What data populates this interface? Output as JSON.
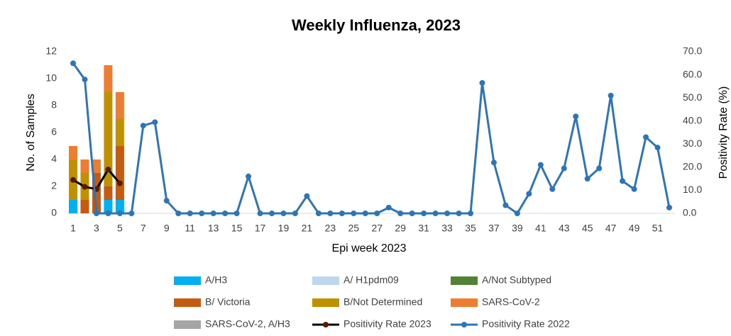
{
  "chart_data": {
    "type": "bar",
    "title": "Weekly Influenza, 2023",
    "x_label": "Epi week 2023",
    "y_label": "No. of Samples",
    "y2_label": "Positivity Rate (%)",
    "stacked": true,
    "categories": [
      "1",
      null,
      "3",
      null,
      "5",
      null,
      "7",
      null,
      "9",
      null,
      "11",
      null,
      "13",
      null,
      "15",
      null,
      "17",
      null,
      "19",
      null,
      "21",
      null,
      "23",
      null,
      "25",
      null,
      "27",
      null,
      "29",
      null,
      "31",
      null,
      "33",
      null,
      "35",
      null,
      "37",
      null,
      "39",
      null,
      "41",
      null,
      "43",
      null,
      "45",
      null,
      "47",
      null,
      "49",
      null,
      "51",
      null
    ],
    "ylim": [
      0,
      12
    ],
    "yticks": [
      0,
      2,
      4,
      6,
      8,
      10,
      12
    ],
    "y2lim": [
      0,
      70
    ],
    "y2ticks": [
      {
        "value": 0,
        "label": "0.0"
      },
      {
        "value": 10,
        "label": "10.0"
      },
      {
        "value": 20,
        "label": "20.0"
      },
      {
        "value": 30,
        "label": "30.0"
      },
      {
        "value": 40,
        "label": "40.0"
      },
      {
        "value": 50,
        "label": "50.0"
      },
      {
        "value": 60,
        "label": "60.0"
      },
      {
        "value": 70,
        "label": "70.0"
      }
    ],
    "series": [
      {
        "name": "A/H3",
        "type": "bar",
        "color": "#00b0f0",
        "values": [
          1,
          0,
          0,
          1,
          1,
          null,
          null,
          null,
          null,
          null,
          null,
          null,
          null,
          null,
          null,
          null,
          null,
          null,
          null,
          null,
          null,
          null,
          null,
          null,
          null,
          null,
          null,
          null,
          null,
          null,
          null,
          null,
          null,
          null,
          null,
          null,
          null,
          null,
          null,
          null,
          null,
          null,
          null,
          null,
          null,
          null,
          null,
          null,
          null,
          null,
          null,
          null
        ]
      },
      {
        "name": "A/ H1pdm09",
        "type": "bar",
        "color": "#bdd7ee",
        "values": [
          0,
          0,
          0,
          0,
          0,
          null,
          null,
          null,
          null,
          null,
          null,
          null,
          null,
          null,
          null,
          null,
          null,
          null,
          null,
          null,
          null,
          null,
          null,
          null,
          null,
          null,
          null,
          null,
          null,
          null,
          null,
          null,
          null,
          null,
          null,
          null,
          null,
          null,
          null,
          null,
          null,
          null,
          null,
          null,
          null,
          null,
          null,
          null,
          null,
          null,
          null,
          null
        ]
      },
      {
        "name": "A/Not Subtyped",
        "type": "bar",
        "color": "#548235",
        "values": [
          0,
          0,
          0,
          0,
          0,
          null,
          null,
          null,
          null,
          null,
          null,
          null,
          null,
          null,
          null,
          null,
          null,
          null,
          null,
          null,
          null,
          null,
          null,
          null,
          null,
          null,
          null,
          null,
          null,
          null,
          null,
          null,
          null,
          null,
          null,
          null,
          null,
          null,
          null,
          null,
          null,
          null,
          null,
          null,
          null,
          null,
          null,
          null,
          null,
          null,
          null,
          null
        ]
      },
      {
        "name": "B/ Victoria",
        "type": "bar",
        "color": "#c55a11",
        "values": [
          0,
          1,
          3,
          1,
          4,
          null,
          null,
          null,
          null,
          null,
          null,
          null,
          null,
          null,
          null,
          null,
          null,
          null,
          null,
          null,
          null,
          null,
          null,
          null,
          null,
          null,
          null,
          null,
          null,
          null,
          null,
          null,
          null,
          null,
          null,
          null,
          null,
          null,
          null,
          null,
          null,
          null,
          null,
          null,
          null,
          null,
          null,
          null,
          null,
          null,
          null,
          null
        ]
      },
      {
        "name": "B/Not Determined",
        "type": "bar",
        "color": "#bf9000",
        "values": [
          3,
          2,
          0,
          7,
          2,
          null,
          null,
          null,
          null,
          null,
          null,
          null,
          null,
          null,
          null,
          null,
          null,
          null,
          null,
          null,
          null,
          null,
          null,
          null,
          null,
          null,
          null,
          null,
          null,
          null,
          null,
          null,
          null,
          null,
          null,
          null,
          null,
          null,
          null,
          null,
          null,
          null,
          null,
          null,
          null,
          null,
          null,
          null,
          null,
          null,
          null,
          null
        ]
      },
      {
        "name": "SARS-CoV-2",
        "type": "bar",
        "color": "#ed7d31",
        "values": [
          1,
          1,
          1,
          2,
          2,
          null,
          null,
          null,
          null,
          null,
          null,
          null,
          null,
          null,
          null,
          null,
          null,
          null,
          null,
          null,
          null,
          null,
          null,
          null,
          null,
          null,
          null,
          null,
          null,
          null,
          null,
          null,
          null,
          null,
          null,
          null,
          null,
          null,
          null,
          null,
          null,
          null,
          null,
          null,
          null,
          null,
          null,
          null,
          null,
          null,
          null,
          null
        ]
      },
      {
        "name": "SARS-CoV-2, A/H3",
        "type": "bar",
        "color": "#a5a5a5",
        "values": [
          0,
          0,
          0,
          0,
          0,
          null,
          null,
          null,
          null,
          null,
          null,
          null,
          null,
          null,
          null,
          null,
          null,
          null,
          null,
          null,
          null,
          null,
          null,
          null,
          null,
          null,
          null,
          null,
          null,
          null,
          null,
          null,
          null,
          null,
          null,
          null,
          null,
          null,
          null,
          null,
          null,
          null,
          null,
          null,
          null,
          null,
          null,
          null,
          null,
          null,
          null,
          null
        ]
      },
      {
        "name": "Positivity Rate 2023",
        "type": "line",
        "axis": "y2",
        "color": "#000000",
        "marker_color": "#5a1a00",
        "values": [
          14.5,
          11.5,
          10.5,
          19,
          13,
          null,
          null,
          null,
          null,
          null,
          null,
          null,
          null,
          null,
          null,
          null,
          null,
          null,
          null,
          null,
          null,
          null,
          null,
          null,
          null,
          null,
          null,
          null,
          null,
          null,
          null,
          null,
          null,
          null,
          null,
          null,
          null,
          null,
          null,
          null,
          null,
          null,
          null,
          null,
          null,
          null,
          null,
          null,
          null,
          null,
          null,
          null
        ]
      },
      {
        "name": "Positivity Rate 2022",
        "type": "line",
        "axis": "y2",
        "color": "#2e75b6",
        "marker_color": "#2e75b6",
        "values": [
          65,
          58,
          0,
          0,
          0,
          0,
          38,
          39.5,
          5.5,
          0,
          0,
          0,
          0,
          0,
          0,
          16,
          0,
          0,
          0,
          0,
          7.5,
          0,
          0,
          0,
          0,
          0,
          0,
          2.5,
          0,
          0,
          0,
          0,
          0,
          0,
          0,
          56.5,
          22,
          3.5,
          0,
          8.5,
          21,
          10.5,
          19.5,
          42,
          15,
          19.5,
          51,
          14,
          10.5,
          33,
          28.5,
          2.5
        ]
      }
    ]
  }
}
